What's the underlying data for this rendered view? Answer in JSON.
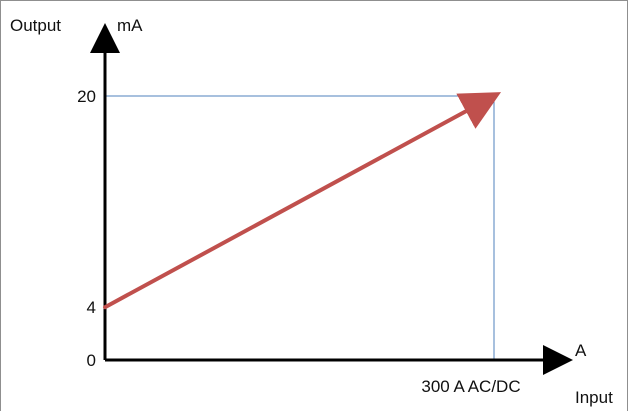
{
  "chart_data": {
    "type": "line",
    "x_label_left": "Output",
    "y_unit": "mA",
    "x_unit": "A",
    "x_label_bottom": "Input",
    "y_ticks": [
      {
        "value": 0,
        "label": "0"
      },
      {
        "value": 4,
        "label": "4"
      },
      {
        "value": 20,
        "label": "20"
      }
    ],
    "x_ticks": [
      {
        "value": 300,
        "label": "300 A AC/DC"
      }
    ],
    "x": [
      0,
      300
    ],
    "y": [
      4,
      20
    ],
    "xlim": [
      0,
      300
    ],
    "ylim": [
      0,
      20
    ],
    "series": [
      {
        "x": [
          0,
          300
        ],
        "y": [
          4,
          20
        ]
      }
    ],
    "grid": false,
    "colors": {
      "series": "#c0504d",
      "axis": "#000000",
      "guide": "#4f81bd",
      "frame": "#8f8f8f"
    }
  }
}
